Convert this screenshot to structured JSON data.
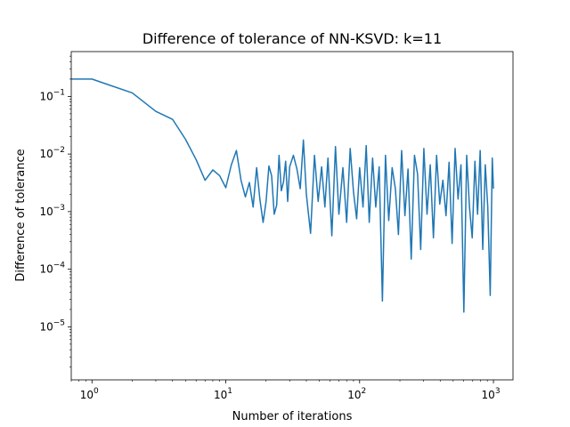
{
  "chart_data": {
    "type": "line",
    "title": "Difference of tolerance of NN-KSVD: k=11",
    "xlabel": "Number of iterations",
    "ylabel": "Difference of tolerance",
    "xscale": "log",
    "yscale": "log",
    "xlim": [
      0.7,
      1400
    ],
    "ylim": [
      1.2e-06,
      0.6
    ],
    "grid": false,
    "legend": "none",
    "line_color": "#1f77b4",
    "x_ticks": [
      {
        "value": 1,
        "base": "10",
        "exp": "0"
      },
      {
        "value": 10,
        "base": "10",
        "exp": "1"
      },
      {
        "value": 100,
        "base": "10",
        "exp": "2"
      },
      {
        "value": 1000,
        "base": "10",
        "exp": "3"
      }
    ],
    "y_ticks": [
      {
        "value": 1e-05,
        "base": "10",
        "exp": "−5"
      },
      {
        "value": 0.0001,
        "base": "10",
        "exp": "−4"
      },
      {
        "value": 0.001,
        "base": "10",
        "exp": "−3"
      },
      {
        "value": 0.01,
        "base": "10",
        "exp": "−2"
      },
      {
        "value": 0.1,
        "base": "10",
        "exp": "−1"
      }
    ],
    "series": [
      {
        "x": [
          0.7,
          1,
          2,
          3,
          4,
          5,
          6,
          7,
          8,
          9,
          10,
          11,
          12,
          13,
          14,
          15,
          16,
          17,
          18,
          19,
          20,
          21,
          22,
          23,
          24,
          25,
          26,
          27,
          28,
          29,
          30,
          32,
          34,
          36,
          38,
          40,
          43,
          46,
          49,
          52,
          55,
          58,
          62,
          66,
          70,
          75,
          80,
          85,
          90,
          95,
          100,
          106,
          112,
          118,
          125,
          132,
          140,
          148,
          156,
          165,
          175,
          185,
          195,
          206,
          218,
          230,
          243,
          257,
          271,
          286,
          302,
          319,
          337,
          356,
          376,
          397,
          419,
          442,
          466,
          491,
          517,
          544,
          572,
          601,
          631,
          662,
          694,
          727,
          761,
          796,
          832,
          869,
          907,
          946,
          980,
          1000
        ],
        "y": [
          0.2,
          0.2,
          0.115,
          0.055,
          0.04,
          0.018,
          0.008,
          0.0035,
          0.0053,
          0.0042,
          0.0026,
          0.0065,
          0.0115,
          0.0035,
          0.0018,
          0.0032,
          0.0012,
          0.0058,
          0.0016,
          0.00065,
          0.0015,
          0.0062,
          0.0042,
          0.0009,
          0.0013,
          0.0095,
          0.0023,
          0.0033,
          0.0075,
          0.0015,
          0.006,
          0.0095,
          0.0055,
          0.0025,
          0.0175,
          0.002,
          0.00042,
          0.0095,
          0.0015,
          0.006,
          0.0012,
          0.0085,
          0.00038,
          0.0135,
          0.0009,
          0.0058,
          0.00065,
          0.0125,
          0.0022,
          0.00075,
          0.0058,
          0.0012,
          0.014,
          0.00065,
          0.0085,
          0.0012,
          0.006,
          2.8e-05,
          0.0095,
          0.0007,
          0.0058,
          0.0025,
          0.0004,
          0.0115,
          0.00085,
          0.0055,
          0.00015,
          0.0095,
          0.0045,
          0.00022,
          0.0125,
          0.0009,
          0.0065,
          0.00035,
          0.0095,
          0.00135,
          0.0035,
          0.00085,
          0.0072,
          0.00028,
          0.0125,
          0.00165,
          0.0065,
          1.8e-05,
          0.0095,
          0.0012,
          0.00035,
          0.0075,
          0.0009,
          0.0115,
          0.00022,
          0.0065,
          0.0012,
          3.5e-05,
          0.0085,
          0.0025
        ]
      }
    ]
  }
}
